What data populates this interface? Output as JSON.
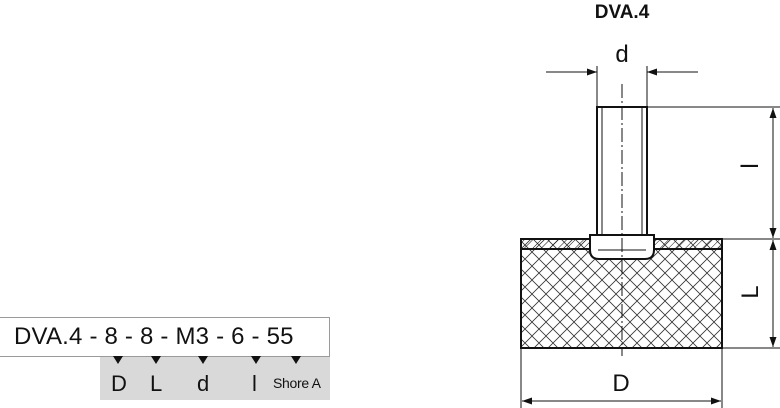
{
  "title": "DVA.4",
  "order_code": {
    "text": "DVA.4 - 8 - 8 - M3 - 6 - 55",
    "legend": [
      "D",
      "L",
      "d",
      "l",
      "Shore A"
    ]
  },
  "dimensions": {
    "d": "d",
    "l": "l",
    "L": "L",
    "D": "D"
  },
  "colors": {
    "legend_background": "#d9d9d9",
    "stroke": "#111111"
  }
}
